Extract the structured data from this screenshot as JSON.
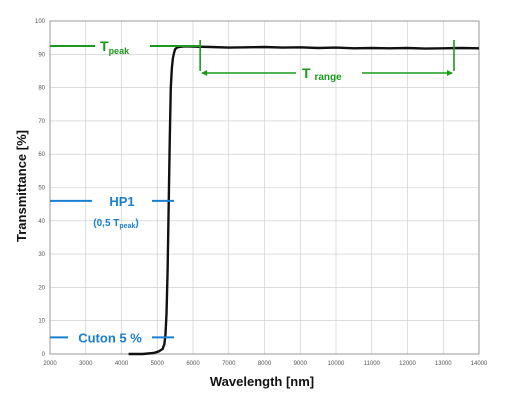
{
  "chart_data": {
    "type": "line",
    "xlabel": "Wavelength [nm]",
    "ylabel": "Transmittance [%]",
    "xlim": [
      2000,
      14000
    ],
    "ylim": [
      0,
      100
    ],
    "x_ticks": [
      2000,
      3000,
      4000,
      5000,
      6000,
      7000,
      8000,
      9000,
      10000,
      11000,
      12000,
      13000,
      14000
    ],
    "y_ticks": [
      0,
      10,
      20,
      30,
      40,
      50,
      60,
      70,
      80,
      90,
      100
    ],
    "grid": true,
    "series": [
      {
        "color": "#111111",
        "x": [
          4200,
          4600,
          4900,
          5050,
          5150,
          5200,
          5230,
          5260,
          5290,
          5320,
          5350,
          5380,
          5410,
          5440,
          5470,
          5500,
          5550,
          5600,
          5700,
          5800,
          6000,
          6500,
          7000,
          7500,
          8000,
          8500,
          9000,
          9500,
          10000,
          10500,
          11000,
          11500,
          12000,
          12500,
          13000,
          13500,
          14000
        ],
        "y": [
          0,
          0,
          0.3,
          0.8,
          1.5,
          3,
          6,
          12,
          25,
          45,
          65,
          80,
          86,
          89,
          90.5,
          91.5,
          92,
          92.2,
          92.3,
          92.4,
          92.3,
          92.2,
          92.0,
          92.1,
          92.2,
          92.0,
          92.1,
          91.9,
          92.0,
          91.8,
          91.9,
          91.8,
          91.9,
          91.7,
          91.8,
          91.9,
          91.8
        ]
      }
    ],
    "annotations": {
      "t_peak": {
        "label_main": "T",
        "label_sub": "peak",
        "y": 92.5,
        "x_end": 6200
      },
      "t_range": {
        "label_main": "T",
        "label_sub": "range",
        "x_start": 6200,
        "x_end": 13300,
        "y_marker": 85
      },
      "hp1": {
        "label": "HP1",
        "sublabel_open": "(0,5 T",
        "sublabel_sub": "peak",
        "sublabel_close": ")",
        "y": 46
      },
      "cuton": {
        "label": "Cuton 5 %",
        "y": 5
      }
    },
    "colors": {
      "green": "#1a9a1a",
      "blue": "#1a7fd1",
      "grid": "#c8c8c8",
      "curve": "#111111"
    }
  }
}
